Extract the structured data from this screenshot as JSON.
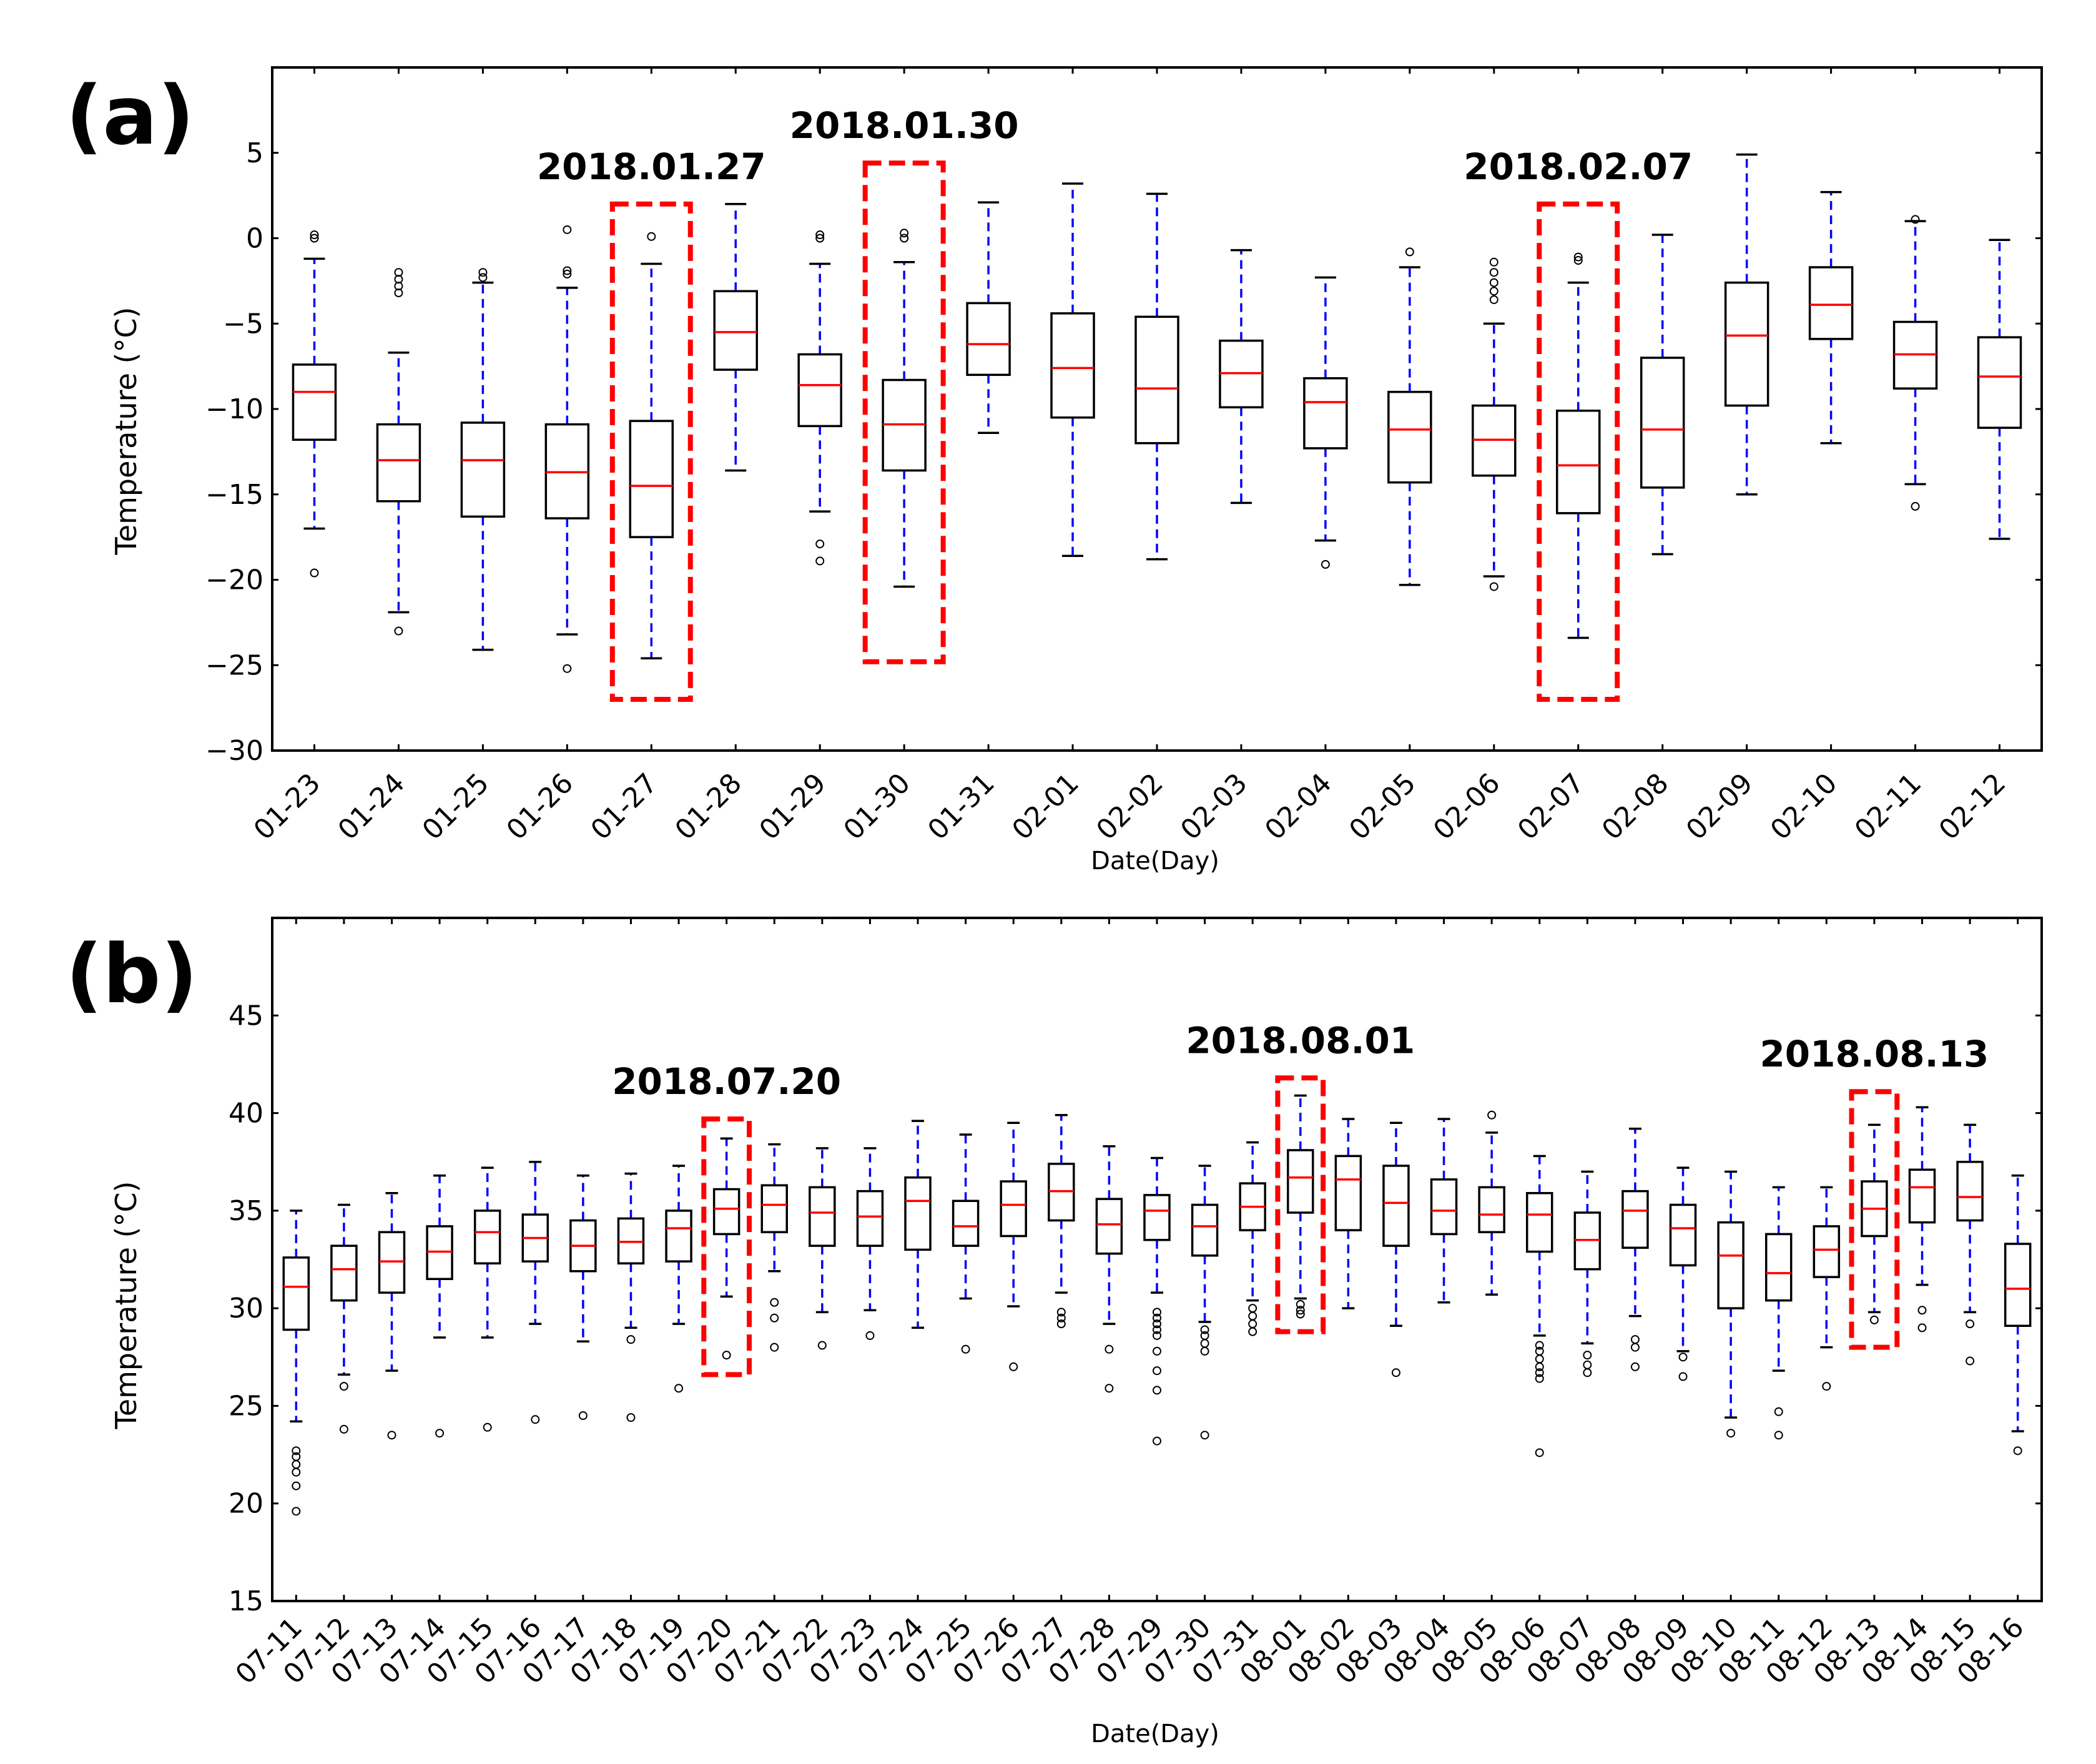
{
  "colors": {
    "box": "#000000",
    "median": "#ff0000",
    "whisker": "#0000ff",
    "flier": "#000000",
    "highlight": "#ff0000"
  },
  "chart_data": [
    {
      "type": "box",
      "panel_label": "(a)",
      "xlabel": "Date(Day)",
      "ylabel": "Temperature (°C)",
      "ylim": [
        -30,
        10
      ],
      "yticks": [
        -30,
        -25,
        -20,
        -15,
        -10,
        -5,
        0,
        5
      ],
      "categories": [
        "01-23",
        "01-24",
        "01-25",
        "01-26",
        "01-27",
        "01-28",
        "01-29",
        "01-30",
        "01-31",
        "02-01",
        "02-02",
        "02-03",
        "02-04",
        "02-05",
        "02-06",
        "02-07",
        "02-08",
        "02-09",
        "02-10",
        "02-11",
        "02-12"
      ],
      "boxes": [
        {
          "q1": -11.8,
          "median": -9.0,
          "q3": -7.4,
          "wlo": -17.0,
          "whi": -1.2,
          "fliers": [
            0.0,
            0.2,
            -19.6
          ]
        },
        {
          "q1": -15.4,
          "median": -13.0,
          "q3": -10.9,
          "wlo": -21.9,
          "whi": -6.7,
          "fliers": [
            -2.0,
            -2.4,
            -2.8,
            -3.2,
            -23.0
          ]
        },
        {
          "q1": -16.3,
          "median": -13.0,
          "q3": -10.8,
          "wlo": -24.1,
          "whi": -2.6,
          "fliers": [
            -2.0,
            -2.3
          ]
        },
        {
          "q1": -16.4,
          "median": -13.7,
          "q3": -10.9,
          "wlo": -23.2,
          "whi": -2.9,
          "fliers": [
            0.5,
            -1.9,
            -2.1,
            -25.2
          ]
        },
        {
          "q1": -17.5,
          "median": -14.5,
          "q3": -10.7,
          "wlo": -24.6,
          "whi": -1.5,
          "fliers": [
            0.1
          ]
        },
        {
          "q1": -7.7,
          "median": -5.5,
          "q3": -3.1,
          "wlo": -13.6,
          "whi": 2.0,
          "fliers": []
        },
        {
          "q1": -11.0,
          "median": -8.6,
          "q3": -6.8,
          "wlo": -16.0,
          "whi": -1.5,
          "fliers": [
            0.0,
            0.2,
            -17.9,
            -18.9
          ]
        },
        {
          "q1": -13.6,
          "median": -10.9,
          "q3": -8.3,
          "wlo": -20.4,
          "whi": -1.4,
          "fliers": [
            0.0,
            0.3
          ]
        },
        {
          "q1": -8.0,
          "median": -6.2,
          "q3": -3.8,
          "wlo": -11.4,
          "whi": 2.1,
          "fliers": []
        },
        {
          "q1": -10.5,
          "median": -7.6,
          "q3": -4.4,
          "wlo": -18.6,
          "whi": 3.2,
          "fliers": []
        },
        {
          "q1": -12.0,
          "median": -8.8,
          "q3": -4.6,
          "wlo": -18.8,
          "whi": 2.6,
          "fliers": []
        },
        {
          "q1": -9.9,
          "median": -7.9,
          "q3": -6.0,
          "wlo": -15.5,
          "whi": -0.7,
          "fliers": []
        },
        {
          "q1": -12.3,
          "median": -9.6,
          "q3": -8.2,
          "wlo": -17.7,
          "whi": -2.3,
          "fliers": [
            -19.1
          ]
        },
        {
          "q1": -14.3,
          "median": -11.2,
          "q3": -9.0,
          "wlo": -20.3,
          "whi": -1.7,
          "fliers": [
            -0.8
          ]
        },
        {
          "q1": -13.9,
          "median": -11.8,
          "q3": -9.8,
          "wlo": -19.8,
          "whi": -5.0,
          "fliers": [
            -1.4,
            -2.0,
            -2.6,
            -3.1,
            -3.6,
            -20.4
          ]
        },
        {
          "q1": -16.1,
          "median": -13.3,
          "q3": -10.1,
          "wlo": -23.4,
          "whi": -2.6,
          "fliers": [
            -1.1,
            -1.3
          ]
        },
        {
          "q1": -14.6,
          "median": -11.2,
          "q3": -7.0,
          "wlo": -18.5,
          "whi": 0.2,
          "fliers": []
        },
        {
          "q1": -9.8,
          "median": -5.7,
          "q3": -2.6,
          "wlo": -15.0,
          "whi": 4.9,
          "fliers": []
        },
        {
          "q1": -5.9,
          "median": -3.9,
          "q3": -1.7,
          "wlo": -12.0,
          "whi": 2.7,
          "fliers": []
        },
        {
          "q1": -8.8,
          "median": -6.8,
          "q3": -4.9,
          "wlo": -14.4,
          "whi": 1.0,
          "fliers": [
            1.1,
            -15.7
          ]
        },
        {
          "q1": -11.1,
          "median": -8.1,
          "q3": -5.8,
          "wlo": -17.6,
          "whi": -0.1,
          "fliers": []
        }
      ],
      "highlights": [
        {
          "label": "2018.01.27",
          "index": 4,
          "y_low": -27.0,
          "y_high": 2.0
        },
        {
          "label": "2018.01.30",
          "index": 7,
          "y_low": -24.8,
          "y_high": 4.4
        },
        {
          "label": "2018.02.07",
          "index": 15,
          "y_low": -27.0,
          "y_high": 2.0
        }
      ]
    },
    {
      "type": "box",
      "panel_label": "(b)",
      "xlabel": "Date(Day)",
      "ylabel": "Temperature (°C)",
      "ylim": [
        15,
        50
      ],
      "yticks": [
        15,
        20,
        25,
        30,
        35,
        40,
        45
      ],
      "categories": [
        "07-11",
        "07-12",
        "07-13",
        "07-14",
        "07-15",
        "07-16",
        "07-17",
        "07-18",
        "07-19",
        "07-20",
        "07-21",
        "07-22",
        "07-23",
        "07-24",
        "07-25",
        "07-26",
        "07-27",
        "07-28",
        "07-29",
        "07-30",
        "07-31",
        "08-01",
        "08-02",
        "08-03",
        "08-04",
        "08-05",
        "08-06",
        "08-07",
        "08-08",
        "08-09",
        "08-10",
        "08-11",
        "08-12",
        "08-13",
        "08-14",
        "08-15",
        "08-16"
      ],
      "boxes": [
        {
          "q1": 28.9,
          "median": 31.1,
          "q3": 32.6,
          "wlo": 24.2,
          "whi": 35.0,
          "fliers": [
            22.7,
            22.4,
            22.0,
            21.6,
            20.9,
            19.6
          ]
        },
        {
          "q1": 30.4,
          "median": 32.0,
          "q3": 33.2,
          "wlo": 26.6,
          "whi": 35.3,
          "fliers": [
            26.0,
            23.8
          ]
        },
        {
          "q1": 30.8,
          "median": 32.4,
          "q3": 33.9,
          "wlo": 26.8,
          "whi": 35.9,
          "fliers": [
            23.5
          ]
        },
        {
          "q1": 31.5,
          "median": 32.9,
          "q3": 34.2,
          "wlo": 28.5,
          "whi": 36.8,
          "fliers": [
            23.6
          ]
        },
        {
          "q1": 32.3,
          "median": 33.9,
          "q3": 35.0,
          "wlo": 28.5,
          "whi": 37.2,
          "fliers": [
            23.9
          ]
        },
        {
          "q1": 32.4,
          "median": 33.6,
          "q3": 34.8,
          "wlo": 29.2,
          "whi": 37.5,
          "fliers": [
            24.3
          ]
        },
        {
          "q1": 31.9,
          "median": 33.2,
          "q3": 34.5,
          "wlo": 28.3,
          "whi": 36.8,
          "fliers": [
            24.5
          ]
        },
        {
          "q1": 32.3,
          "median": 33.4,
          "q3": 34.6,
          "wlo": 29.0,
          "whi": 36.9,
          "fliers": [
            28.4,
            24.4
          ]
        },
        {
          "q1": 32.4,
          "median": 34.1,
          "q3": 35.0,
          "wlo": 29.2,
          "whi": 37.3,
          "fliers": [
            25.9
          ]
        },
        {
          "q1": 33.8,
          "median": 35.1,
          "q3": 36.1,
          "wlo": 30.6,
          "whi": 38.7,
          "fliers": [
            27.6
          ]
        },
        {
          "q1": 33.9,
          "median": 35.3,
          "q3": 36.3,
          "wlo": 31.9,
          "whi": 38.4,
          "fliers": [
            30.3,
            29.5,
            28.0
          ]
        },
        {
          "q1": 33.2,
          "median": 34.9,
          "q3": 36.2,
          "wlo": 29.8,
          "whi": 38.2,
          "fliers": [
            28.1
          ]
        },
        {
          "q1": 33.2,
          "median": 34.7,
          "q3": 36.0,
          "wlo": 29.9,
          "whi": 38.2,
          "fliers": [
            28.6
          ]
        },
        {
          "q1": 33.0,
          "median": 35.5,
          "q3": 36.7,
          "wlo": 29.0,
          "whi": 39.6,
          "fliers": []
        },
        {
          "q1": 33.2,
          "median": 34.2,
          "q3": 35.5,
          "wlo": 30.5,
          "whi": 38.9,
          "fliers": [
            27.9
          ]
        },
        {
          "q1": 33.7,
          "median": 35.3,
          "q3": 36.5,
          "wlo": 30.1,
          "whi": 39.5,
          "fliers": [
            27.0
          ]
        },
        {
          "q1": 34.5,
          "median": 36.0,
          "q3": 37.4,
          "wlo": 30.8,
          "whi": 39.9,
          "fliers": [
            29.8,
            29.5,
            29.2
          ]
        },
        {
          "q1": 32.8,
          "median": 34.3,
          "q3": 35.6,
          "wlo": 29.2,
          "whi": 38.3,
          "fliers": [
            27.9,
            25.9
          ]
        },
        {
          "q1": 33.5,
          "median": 35.0,
          "q3": 35.8,
          "wlo": 30.8,
          "whi": 37.7,
          "fliers": [
            29.8,
            29.5,
            29.2,
            28.9,
            28.6,
            27.8,
            26.8,
            25.8,
            23.2
          ]
        },
        {
          "q1": 32.7,
          "median": 34.2,
          "q3": 35.3,
          "wlo": 29.3,
          "whi": 37.3,
          "fliers": [
            28.9,
            28.6,
            28.2,
            27.8,
            23.5
          ]
        },
        {
          "q1": 34.0,
          "median": 35.2,
          "q3": 36.4,
          "wlo": 30.4,
          "whi": 38.5,
          "fliers": [
            30.0,
            29.6,
            29.2,
            28.8
          ]
        },
        {
          "q1": 34.9,
          "median": 36.7,
          "q3": 38.1,
          "wlo": 30.5,
          "whi": 40.9,
          "fliers": [
            30.2,
            29.9,
            29.7
          ]
        },
        {
          "q1": 34.0,
          "median": 36.6,
          "q3": 37.8,
          "wlo": 30.0,
          "whi": 39.7,
          "fliers": []
        },
        {
          "q1": 33.2,
          "median": 35.4,
          "q3": 37.3,
          "wlo": 29.1,
          "whi": 39.5,
          "fliers": [
            26.7
          ]
        },
        {
          "q1": 33.8,
          "median": 35.0,
          "q3": 36.6,
          "wlo": 30.3,
          "whi": 39.7,
          "fliers": []
        },
        {
          "q1": 33.9,
          "median": 34.8,
          "q3": 36.2,
          "wlo": 30.7,
          "whi": 39.0,
          "fliers": [
            39.9
          ]
        },
        {
          "q1": 32.9,
          "median": 34.8,
          "q3": 35.9,
          "wlo": 28.6,
          "whi": 37.8,
          "fliers": [
            28.1,
            27.8,
            27.4,
            27.0,
            26.7,
            26.4,
            22.6
          ]
        },
        {
          "q1": 32.0,
          "median": 33.5,
          "q3": 34.9,
          "wlo": 28.2,
          "whi": 37.0,
          "fliers": [
            27.6,
            27.1,
            26.7
          ]
        },
        {
          "q1": 33.1,
          "median": 35.0,
          "q3": 36.0,
          "wlo": 29.6,
          "whi": 39.2,
          "fliers": [
            28.4,
            28.0,
            27.0
          ]
        },
        {
          "q1": 32.2,
          "median": 34.1,
          "q3": 35.3,
          "wlo": 27.8,
          "whi": 37.2,
          "fliers": [
            27.5,
            26.5
          ]
        },
        {
          "q1": 30.0,
          "median": 32.7,
          "q3": 34.4,
          "wlo": 24.4,
          "whi": 37.0,
          "fliers": [
            23.6
          ]
        },
        {
          "q1": 30.4,
          "median": 31.8,
          "q3": 33.8,
          "wlo": 26.8,
          "whi": 36.2,
          "fliers": [
            24.7,
            23.5
          ]
        },
        {
          "q1": 31.6,
          "median": 33.0,
          "q3": 34.2,
          "wlo": 28.0,
          "whi": 36.2,
          "fliers": [
            26.0
          ]
        },
        {
          "q1": 33.7,
          "median": 35.1,
          "q3": 36.5,
          "wlo": 29.8,
          "whi": 39.4,
          "fliers": [
            29.4
          ]
        },
        {
          "q1": 34.4,
          "median": 36.2,
          "q3": 37.1,
          "wlo": 31.2,
          "whi": 40.3,
          "fliers": [
            29.9,
            29.0
          ]
        },
        {
          "q1": 34.5,
          "median": 35.7,
          "q3": 37.5,
          "wlo": 29.8,
          "whi": 39.4,
          "fliers": [
            29.2,
            27.3
          ]
        },
        {
          "q1": 29.1,
          "median": 31.0,
          "q3": 33.3,
          "wlo": 23.7,
          "whi": 36.8,
          "fliers": [
            22.7
          ]
        }
      ],
      "highlights": [
        {
          "label": "2018.07.20",
          "index": 9,
          "y_low": 26.6,
          "y_high": 39.7
        },
        {
          "label": "2018.08.01",
          "index": 21,
          "y_low": 28.8,
          "y_high": 41.8
        },
        {
          "label": "2018.08.13",
          "index": 33,
          "y_low": 28.0,
          "y_high": 41.1
        }
      ]
    }
  ]
}
